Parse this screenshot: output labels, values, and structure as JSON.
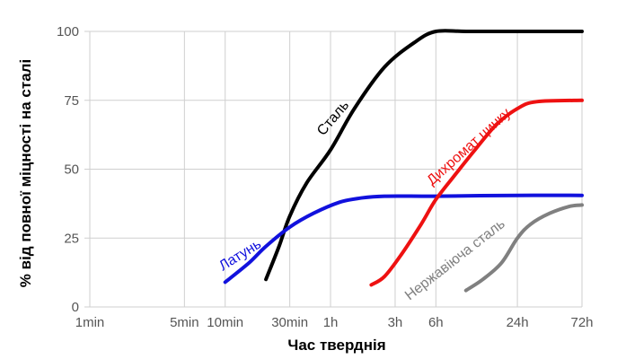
{
  "chart_data": {
    "type": "line",
    "title": "",
    "xlabel": "Час тверднія",
    "ylabel": "% від повної міцності на сталі",
    "x_scale": "log",
    "x_unit": "min",
    "xlim": [
      1,
      4320
    ],
    "ylim": [
      0,
      100
    ],
    "x_ticks": [
      {
        "value": 1,
        "label": "1min"
      },
      {
        "value": 5,
        "label": "5min"
      },
      {
        "value": 10,
        "label": "10min"
      },
      {
        "value": 30,
        "label": "30min"
      },
      {
        "value": 60,
        "label": "1h"
      },
      {
        "value": 180,
        "label": "3h"
      },
      {
        "value": 360,
        "label": "6h"
      },
      {
        "value": 1440,
        "label": "24h"
      },
      {
        "value": 4320,
        "label": "72h"
      }
    ],
    "y_ticks": [
      {
        "value": 0,
        "label": "0"
      },
      {
        "value": 25,
        "label": "25"
      },
      {
        "value": 50,
        "label": "50"
      },
      {
        "value": 75,
        "label": "75"
      },
      {
        "value": 100,
        "label": "100"
      }
    ],
    "grid": true,
    "series": [
      {
        "name": "Сталь",
        "color": "#000000",
        "points": [
          [
            20,
            10
          ],
          [
            25,
            22
          ],
          [
            30,
            33
          ],
          [
            40,
            45
          ],
          [
            60,
            57
          ],
          [
            90,
            72
          ],
          [
            150,
            87
          ],
          [
            250,
            96
          ],
          [
            360,
            100
          ],
          [
            600,
            100
          ],
          [
            1440,
            100
          ],
          [
            4320,
            100
          ]
        ]
      },
      {
        "name": "Латунь",
        "color": "#1111dd",
        "points": [
          [
            10,
            9
          ],
          [
            15,
            16
          ],
          [
            20,
            22
          ],
          [
            30,
            29
          ],
          [
            45,
            34
          ],
          [
            70,
            38
          ],
          [
            100,
            39.5
          ],
          [
            150,
            40.2
          ],
          [
            360,
            40.2
          ],
          [
            1440,
            40.5
          ],
          [
            4320,
            40.5
          ]
        ]
      },
      {
        "name": "Дихромат цинку",
        "color": "#ee1111",
        "points": [
          [
            120,
            8
          ],
          [
            150,
            11
          ],
          [
            200,
            19
          ],
          [
            280,
            30
          ],
          [
            360,
            39
          ],
          [
            500,
            48
          ],
          [
            700,
            57
          ],
          [
            1000,
            66
          ],
          [
            1440,
            72
          ],
          [
            2000,
            74.5
          ],
          [
            4320,
            75
          ]
        ]
      },
      {
        "name": "Нержавіюча сталь",
        "color": "#808080",
        "points": [
          [
            600,
            6
          ],
          [
            800,
            10
          ],
          [
            1100,
            16
          ],
          [
            1440,
            25
          ],
          [
            1800,
            30
          ],
          [
            2500,
            34
          ],
          [
            3500,
            36.5
          ],
          [
            4320,
            37
          ]
        ]
      }
    ]
  }
}
